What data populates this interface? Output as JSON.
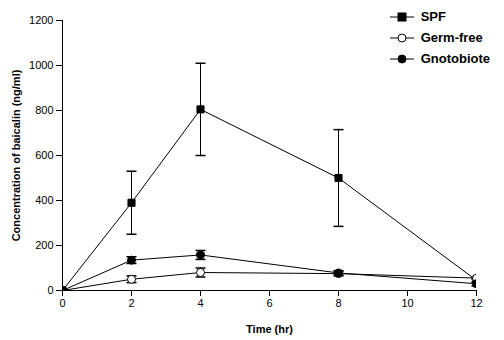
{
  "chart_data": {
    "type": "line",
    "x_label": "Time (hr)",
    "y_label": "Concentration of baicalin (ng/ml)",
    "x": [
      0,
      2,
      4,
      8,
      12
    ],
    "series": [
      {
        "name": "SPF",
        "color": "#000000",
        "marker": "square",
        "values": [
          0,
          390,
          805,
          500,
          45
        ],
        "errors": [
          0,
          140,
          205,
          215,
          10
        ]
      },
      {
        "name": "Germ-free",
        "color": "#000000",
        "marker": "circle-open",
        "values": [
          0,
          50,
          80,
          75,
          55
        ],
        "errors": [
          0,
          15,
          20,
          10,
          5
        ]
      },
      {
        "name": "Gnotobiote",
        "color": "#000000",
        "marker": "circle",
        "values": [
          0,
          135,
          158,
          78,
          30
        ],
        "errors": [
          0,
          15,
          20,
          10,
          10
        ]
      }
    ],
    "xlim": [
      0,
      12
    ],
    "xticks": [
      0,
      2,
      4,
      6,
      8,
      10,
      12
    ],
    "ylim": [
      0,
      1200
    ],
    "yticks": [
      0,
      200,
      400,
      600,
      800,
      1000,
      1200
    ],
    "grid": false,
    "legend": "top-right"
  }
}
